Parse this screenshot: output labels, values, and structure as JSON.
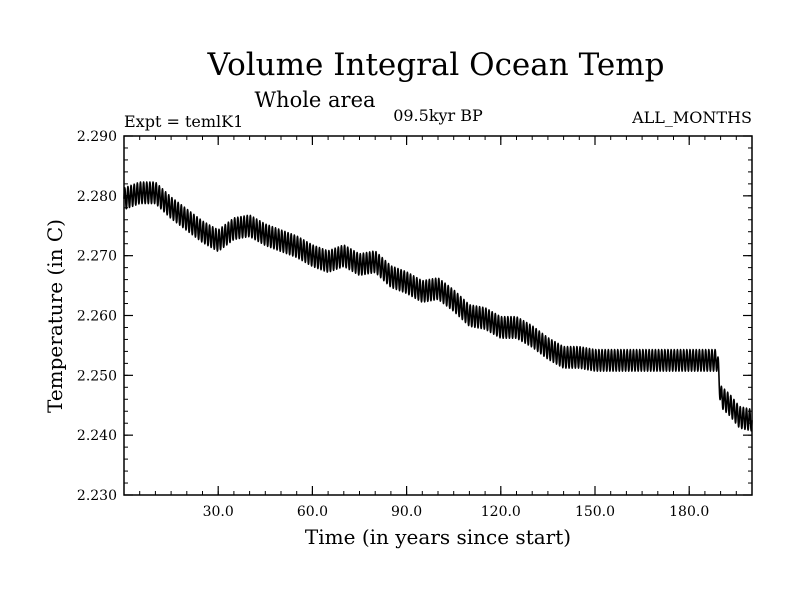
{
  "chart_data": {
    "type": "line",
    "title": "Volume Integral Ocean Temp",
    "subtitle": "Whole area",
    "experiment_label": "Expt = temlK1",
    "period_label": "09.5kyr BP",
    "months_label": "ALL_MONTHS",
    "xlabel": "Time (in years since start)",
    "ylabel": "Temperature (in C)",
    "xlim": [
      0,
      200
    ],
    "ylim": [
      2.23,
      2.29
    ],
    "x_ticks": [
      30,
      60,
      90,
      120,
      150,
      180
    ],
    "x_tick_labels": [
      "30.0",
      "60.0",
      "90.0",
      "120.0",
      "150.0",
      "180.0"
    ],
    "y_ticks": [
      2.23,
      2.24,
      2.25,
      2.26,
      2.27,
      2.28,
      2.29
    ],
    "y_tick_labels": [
      "2.230",
      "2.240",
      "2.250",
      "2.260",
      "2.270",
      "2.280",
      "2.290"
    ],
    "series": [
      {
        "name": "Volume integral ocean temperature",
        "color": "#000000",
        "trend": {
          "x": [
            0,
            5,
            10,
            15,
            20,
            25,
            30,
            35,
            40,
            45,
            50,
            55,
            60,
            65,
            70,
            75,
            80,
            85,
            90,
            95,
            100,
            105,
            110,
            115,
            120,
            125,
            130,
            135,
            140,
            145,
            150,
            155,
            160,
            165,
            170,
            175,
            180,
            185,
            189,
            190,
            193,
            196,
            200
          ],
          "y": [
            2.2795,
            2.2805,
            2.2805,
            2.278,
            2.276,
            2.274,
            2.2725,
            2.2745,
            2.275,
            2.2735,
            2.2725,
            2.2715,
            2.27,
            2.269,
            2.27,
            2.2685,
            2.269,
            2.2665,
            2.2655,
            2.264,
            2.2645,
            2.2625,
            2.26,
            2.2595,
            2.258,
            2.258,
            2.2565,
            2.2545,
            2.253,
            2.253,
            2.2525,
            2.2525,
            2.2525,
            2.2525,
            2.2525,
            2.2525,
            2.2525,
            2.2525,
            2.2525,
            2.2465,
            2.245,
            2.243,
            2.2425
          ]
        },
        "seasonal_cycle_amplitude": 0.0018,
        "cycles_per_year": 1
      }
    ]
  }
}
